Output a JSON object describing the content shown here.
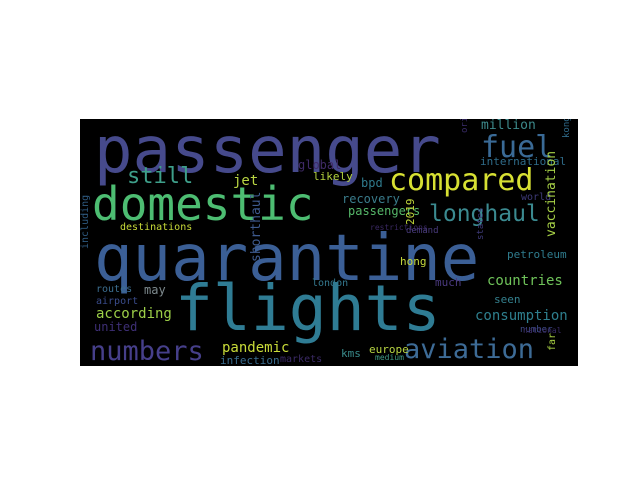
{
  "colors": {
    "background": "#000000",
    "page": "#ffffff"
  },
  "words": [
    {
      "text": "passenger",
      "color": "#464a8c"
    },
    {
      "text": "quarantine",
      "color": "#3b5f96"
    },
    {
      "text": "flights",
      "color": "#2f7c94"
    },
    {
      "text": "domestic",
      "color": "#4dbd72"
    },
    {
      "text": "compared",
      "color": "#d7e033"
    },
    {
      "text": "fuel",
      "color": "#3a6a96"
    },
    {
      "text": "still",
      "color": "#3e9f8a"
    },
    {
      "text": "longhaul",
      "color": "#3b8a90"
    },
    {
      "text": "numbers",
      "color": "#463f8a"
    },
    {
      "text": "aviation",
      "color": "#3d6b96"
    },
    {
      "text": "million",
      "color": "#3d8a8c"
    },
    {
      "text": "jet",
      "color": "#b8d442"
    },
    {
      "text": "global",
      "color": "#3f2a66"
    },
    {
      "text": "likely",
      "color": "#b4d33e"
    },
    {
      "text": "bpd",
      "color": "#2f7a8c"
    },
    {
      "text": "recovery",
      "color": "#3a7c8c"
    },
    {
      "text": "passengers",
      "color": "#56b86a"
    },
    {
      "text": "2019",
      "color": "#c2d83b"
    },
    {
      "text": "countries",
      "color": "#6fc35a"
    },
    {
      "text": "according",
      "color": "#9ccf48"
    },
    {
      "text": "may",
      "color": "#7e8a8e"
    },
    {
      "text": "seen",
      "color": "#34808e"
    },
    {
      "text": "consumption",
      "color": "#2e7f8e"
    },
    {
      "text": "united",
      "color": "#3e2f76"
    },
    {
      "text": "pandemic",
      "color": "#c9db39"
    },
    {
      "text": "infection",
      "color": "#3a6c8e"
    },
    {
      "text": "markets",
      "color": "#3b2a66"
    },
    {
      "text": "kms",
      "color": "#3a8c8c"
    },
    {
      "text": "europe",
      "color": "#b6d442"
    },
    {
      "text": "medium",
      "color": "#3f9c86"
    },
    {
      "text": "london",
      "color": "#34788e"
    },
    {
      "text": "much",
      "color": "#4b3a80"
    },
    {
      "text": "hong",
      "color": "#c6da3c"
    },
    {
      "text": "destinations",
      "color": "#c9db39"
    },
    {
      "text": "restrictions",
      "color": "#3a2862"
    },
    {
      "text": "demand",
      "color": "#4a3c7e"
    },
    {
      "text": "international",
      "color": "#2f6c8a"
    },
    {
      "text": "world",
      "color": "#3e3a78"
    },
    {
      "text": "petroleum",
      "color": "#2f7c8e"
    },
    {
      "text": "airport",
      "color": "#3a4c8c"
    },
    {
      "text": "routes",
      "color": "#3c6e90"
    },
    {
      "text": "number",
      "color": "#3f4c8a"
    },
    {
      "text": "national",
      "color": "#3a2b66"
    },
    {
      "text": "including",
      "color": "#2e5a80"
    },
    {
      "text": "shorthaul",
      "color": "#3e5a8e"
    },
    {
      "text": "vaccination",
      "color": "#a6d046"
    },
    {
      "text": "far",
      "color": "#a8d044"
    },
    {
      "text": "kong",
      "color": "#2f6a8a"
    },
    {
      "text": "origin",
      "color": "#3a2c6a"
    },
    {
      "text": "states",
      "color": "#3e3a78"
    }
  ]
}
